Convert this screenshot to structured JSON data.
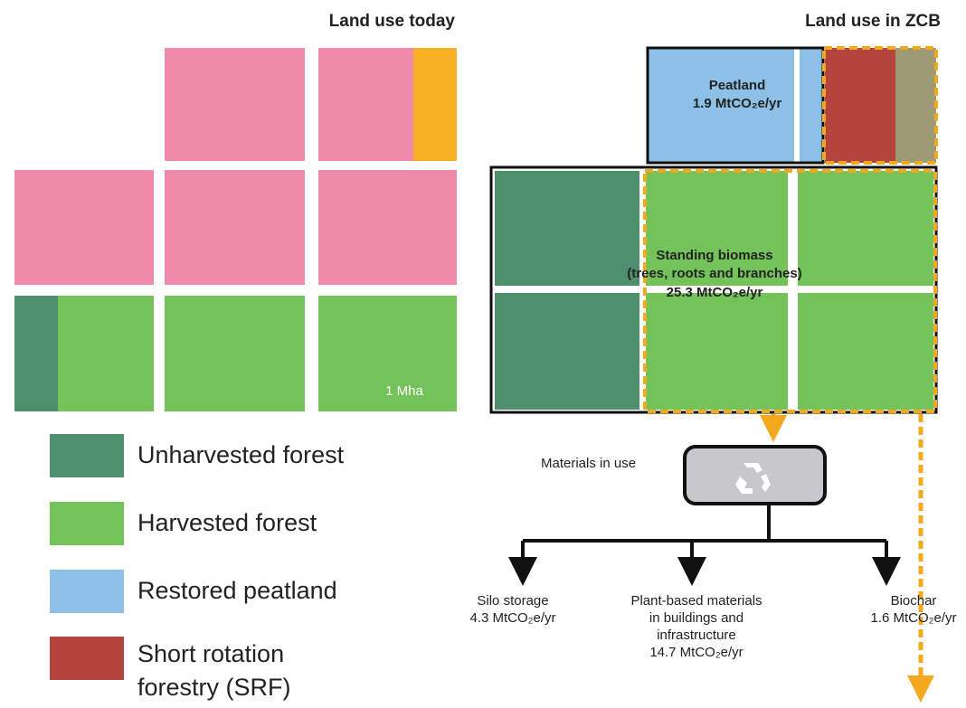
{
  "left": {
    "title": "Land use today",
    "scale_label": "1 Mha"
  },
  "right": {
    "title": "Land use in ZCB",
    "peatland": {
      "label": "Peatland",
      "value": "1.9 MtCO₂e/yr"
    },
    "biomass": {
      "lines": [
        "Standing biomass",
        "(trees, roots and branches)",
        "25.3 MtCO₂e/yr"
      ]
    },
    "materials": {
      "label": "Materials in use"
    },
    "outputs": [
      {
        "lines": [
          "Silo storage",
          "4.3 MtCO₂e/yr"
        ]
      },
      {
        "lines": [
          "Plant-based materials",
          "in buildings and",
          "infrastructure",
          "14.7 MtCO₂e/yr"
        ]
      },
      {
        "lines": [
          "Biochar",
          "1.6 MtCO₂e/yr"
        ]
      }
    ]
  },
  "legend": [
    {
      "lines": [
        "Unharvested forest"
      ]
    },
    {
      "lines": [
        "Harvested forest"
      ]
    },
    {
      "lines": [
        "Restored peatland"
      ]
    },
    {
      "lines": [
        "Short rotation",
        "forestry (SRF)"
      ]
    }
  ]
}
